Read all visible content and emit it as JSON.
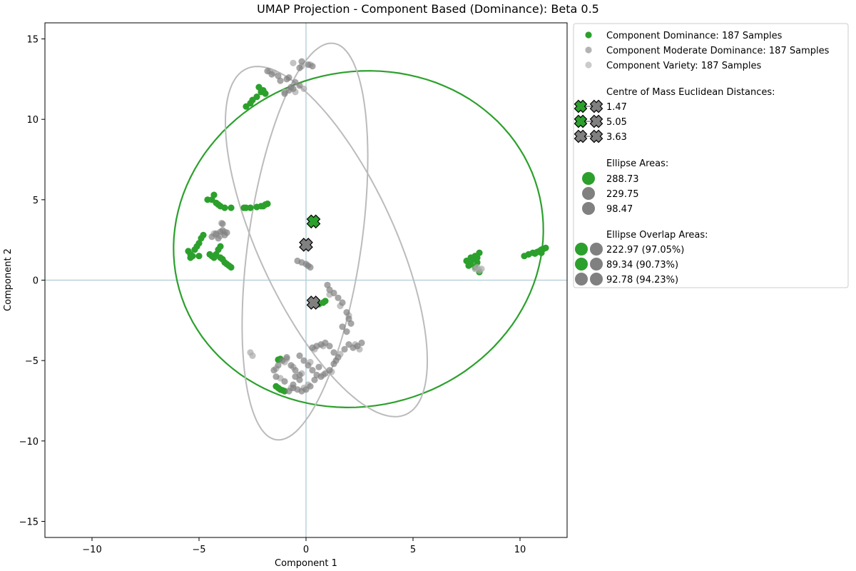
{
  "chart_data": {
    "type": "scatter",
    "title": "UMAP Projection - Component Based (Dominance): Beta 0.5",
    "xlabel": "Component 1",
    "ylabel": "Component 2",
    "xlim": [
      -12.2,
      12.2
    ],
    "ylim": [
      -16.0,
      16.0
    ],
    "xticks": [
      -10,
      -5,
      0,
      5,
      10
    ],
    "yticks": [
      -15,
      -10,
      -5,
      0,
      5,
      10,
      15
    ],
    "reference_lines": {
      "x": 0,
      "y": 0,
      "color": "#aecbd6"
    },
    "grid": false,
    "colors": {
      "dominance": "#2ca02c",
      "moderate": "#808080",
      "variety": "#a9a9a9"
    },
    "series": [
      {
        "name": "Component Dominance: 187 Samples",
        "color": "#2ca02c",
        "points": [
          [
            -2.2,
            12.0
          ],
          [
            -2.0,
            11.8
          ],
          [
            -1.9,
            11.6
          ],
          [
            -2.3,
            11.4
          ],
          [
            -2.5,
            11.2
          ],
          [
            -2.6,
            11.0
          ],
          [
            -2.8,
            10.8
          ],
          [
            -2.1,
            11.7
          ],
          [
            -4.3,
            5.3
          ],
          [
            -4.4,
            5.0
          ],
          [
            -4.2,
            4.8
          ],
          [
            -4.0,
            4.6
          ],
          [
            -3.8,
            4.5
          ],
          [
            -3.5,
            4.5
          ],
          [
            -4.6,
            5.0
          ],
          [
            -4.1,
            4.7
          ],
          [
            -2.9,
            4.5
          ],
          [
            -2.6,
            4.5
          ],
          [
            -2.3,
            4.55
          ],
          [
            -2.0,
            4.6
          ],
          [
            -1.9,
            4.7
          ],
          [
            -1.8,
            4.75
          ],
          [
            -2.8,
            4.5
          ],
          [
            -2.1,
            4.6
          ],
          [
            -5.5,
            1.8
          ],
          [
            -5.4,
            1.6
          ],
          [
            -5.3,
            1.5
          ],
          [
            -5.2,
            1.9
          ],
          [
            -5.1,
            2.1
          ],
          [
            -5.0,
            2.3
          ],
          [
            -4.9,
            2.6
          ],
          [
            -4.8,
            2.8
          ],
          [
            -5.4,
            1.4
          ],
          [
            -5.0,
            1.5
          ],
          [
            -4.5,
            1.6
          ],
          [
            -4.3,
            1.4
          ],
          [
            -4.2,
            1.6
          ],
          [
            -4.1,
            1.9
          ],
          [
            -4.0,
            2.1
          ],
          [
            -3.9,
            1.3
          ],
          [
            -3.8,
            1.1
          ],
          [
            -3.7,
            1.0
          ],
          [
            -3.6,
            0.9
          ],
          [
            -3.5,
            0.8
          ],
          [
            -4.0,
            1.4
          ],
          [
            -4.4,
            1.5
          ],
          [
            7.5,
            1.2
          ],
          [
            7.7,
            1.0
          ],
          [
            7.8,
            1.3
          ],
          [
            7.9,
            1.5
          ],
          [
            8.0,
            1.4
          ],
          [
            8.1,
            1.7
          ],
          [
            7.6,
            0.9
          ],
          [
            8.0,
            1.1
          ],
          [
            7.9,
            0.8
          ],
          [
            8.1,
            0.5
          ],
          [
            7.7,
            1.4
          ],
          [
            10.2,
            1.5
          ],
          [
            10.4,
            1.6
          ],
          [
            10.6,
            1.7
          ],
          [
            10.8,
            1.75
          ],
          [
            10.9,
            1.8
          ],
          [
            11.0,
            1.9
          ],
          [
            11.1,
            1.95
          ],
          [
            11.2,
            2.0
          ],
          [
            10.7,
            1.65
          ],
          [
            11.0,
            1.7
          ],
          [
            -1.2,
            -4.9
          ],
          [
            -1.3,
            -4.95
          ],
          [
            0.8,
            -1.4
          ],
          [
            0.9,
            -1.3
          ],
          [
            0.6,
            -1.5
          ],
          [
            -1.4,
            -6.6
          ],
          [
            -1.3,
            -6.7
          ],
          [
            -1.2,
            -6.8
          ],
          [
            -1.1,
            -6.85
          ],
          [
            -1.0,
            -6.9
          ]
        ]
      },
      {
        "name": "Component Moderate Dominance: 187 Samples",
        "color": "#808080",
        "points": [
          [
            -1.8,
            13.0
          ],
          [
            -1.6,
            12.8
          ],
          [
            -1.3,
            12.7
          ],
          [
            -0.8,
            12.6
          ],
          [
            -0.3,
            13.2
          ],
          [
            -0.2,
            13.6
          ],
          [
            0.1,
            13.4
          ],
          [
            0.3,
            13.3
          ],
          [
            -0.7,
            12.0
          ],
          [
            -0.5,
            12.3
          ],
          [
            -0.3,
            12.1
          ],
          [
            -0.8,
            11.8
          ],
          [
            -1.0,
            11.6
          ],
          [
            -0.6,
            11.9
          ],
          [
            -1.2,
            12.4
          ],
          [
            -0.9,
            12.5
          ],
          [
            -4.2,
            2.9
          ],
          [
            -4.0,
            3.0
          ],
          [
            -3.9,
            3.1
          ],
          [
            -3.8,
            2.8
          ],
          [
            -3.7,
            2.95
          ],
          [
            -4.4,
            2.7
          ],
          [
            -4.1,
            2.6
          ],
          [
            -3.9,
            3.5
          ],
          [
            -0.4,
            1.2
          ],
          [
            -0.2,
            1.1
          ],
          [
            0.0,
            1.0
          ],
          [
            0.1,
            0.9
          ],
          [
            0.2,
            0.8
          ],
          [
            1.0,
            -0.3
          ],
          [
            1.1,
            -0.6
          ],
          [
            1.3,
            -0.8
          ],
          [
            1.5,
            -1.1
          ],
          [
            1.7,
            -1.4
          ],
          [
            1.9,
            -2.0
          ],
          [
            2.0,
            -2.4
          ],
          [
            2.1,
            -2.7
          ],
          [
            1.9,
            -3.2
          ],
          [
            1.7,
            -2.9
          ],
          [
            0.3,
            -4.2
          ],
          [
            0.5,
            -4.1
          ],
          [
            0.7,
            -4.0
          ],
          [
            0.9,
            -3.9
          ],
          [
            1.1,
            -4.1
          ],
          [
            1.3,
            -4.5
          ],
          [
            1.5,
            -4.8
          ],
          [
            1.8,
            -4.3
          ],
          [
            2.0,
            -4.0
          ],
          [
            2.2,
            -4.2
          ],
          [
            2.4,
            -4.1
          ],
          [
            2.6,
            -3.9
          ],
          [
            -0.3,
            -4.7
          ],
          [
            -0.1,
            -5.0
          ],
          [
            0.1,
            -5.3
          ],
          [
            0.3,
            -5.6
          ],
          [
            0.5,
            -5.9
          ],
          [
            0.7,
            -6.0
          ],
          [
            0.9,
            -5.8
          ],
          [
            1.1,
            -5.6
          ],
          [
            1.3,
            -5.2
          ],
          [
            1.4,
            -5.0
          ],
          [
            0.4,
            -6.2
          ],
          [
            0.6,
            -5.4
          ],
          [
            -1.5,
            -5.6
          ],
          [
            -1.3,
            -5.3
          ],
          [
            -1.1,
            -5.0
          ],
          [
            -0.9,
            -4.8
          ],
          [
            -0.7,
            -5.3
          ],
          [
            -0.5,
            -5.6
          ],
          [
            -0.3,
            -5.9
          ],
          [
            -1.4,
            -6.0
          ],
          [
            -1.0,
            -6.3
          ],
          [
            -0.6,
            -6.5
          ],
          [
            -0.8,
            -6.9
          ],
          [
            -0.6,
            -6.7
          ],
          [
            -0.4,
            -6.8
          ],
          [
            -0.2,
            -6.9
          ],
          [
            0.0,
            -6.8
          ],
          [
            0.2,
            -6.6
          ],
          [
            -0.3,
            -6.2
          ],
          [
            -0.5,
            -6.0
          ]
        ]
      },
      {
        "name": "Component Variety: 187 Samples",
        "color": "#a9a9a9",
        "points": [
          [
            -1.7,
            13.0
          ],
          [
            -1.5,
            12.9
          ],
          [
            -0.6,
            13.5
          ],
          [
            -0.2,
            13.3
          ],
          [
            0.2,
            13.4
          ],
          [
            -1.0,
            11.7
          ],
          [
            -0.5,
            11.7
          ],
          [
            -0.1,
            11.9
          ],
          [
            -4.3,
            2.9
          ],
          [
            -4.0,
            2.75
          ],
          [
            -3.8,
            3.0
          ],
          [
            -3.95,
            3.55
          ],
          [
            -4.2,
            2.8
          ],
          [
            8.0,
            0.8
          ],
          [
            8.1,
            0.6
          ],
          [
            8.2,
            0.7
          ],
          [
            7.9,
            0.7
          ],
          [
            1.1,
            -0.9
          ],
          [
            1.6,
            -1.6
          ],
          [
            2.0,
            -2.2
          ],
          [
            0.4,
            -4.3
          ],
          [
            0.8,
            -4.1
          ],
          [
            1.6,
            -4.6
          ],
          [
            2.3,
            -4.0
          ],
          [
            2.5,
            -4.3
          ],
          [
            0.2,
            -5.1
          ],
          [
            0.8,
            -5.9
          ],
          [
            1.2,
            -5.7
          ],
          [
            -1.4,
            -5.5
          ],
          [
            -1.0,
            -5.1
          ],
          [
            -0.6,
            -5.4
          ],
          [
            -0.2,
            -5.8
          ],
          [
            -0.7,
            -6.7
          ],
          [
            -0.1,
            -6.7
          ],
          [
            0.1,
            -6.5
          ],
          [
            -0.9,
            -4.9
          ],
          [
            -1.2,
            -6.1
          ],
          [
            -2.6,
            -4.5
          ],
          [
            -2.5,
            -4.7
          ]
        ]
      }
    ],
    "centres": [
      {
        "series": "Component Dominance: 187 Samples",
        "x": 0.35,
        "y": 3.65,
        "color": "#2ca02c"
      },
      {
        "series": "Component Moderate Dominance: 187 Samples",
        "x": 0.0,
        "y": 2.2,
        "color": "#808080"
      },
      {
        "series": "Component Variety: 187 Samples",
        "x": 0.35,
        "y": -1.4,
        "color": "#808080"
      }
    ],
    "ellipses": [
      {
        "series": "Component Dominance: 187 Samples",
        "cx": 2.45,
        "cy": 2.55,
        "rx": 8.6,
        "ry": 10.5,
        "angle_deg": -8,
        "color": "#2ca02c"
      },
      {
        "series": "Component Moderate Dominance: 187 Samples",
        "cx": 0.95,
        "cy": 2.4,
        "rx": 3.3,
        "ry": 11.4,
        "angle_deg": 18,
        "color": "#bbbbbb"
      },
      {
        "series": "Component Variety: 187 Samples",
        "cx": -0.05,
        "cy": 2.4,
        "rx": 2.65,
        "ry": 12.4,
        "angle_deg": -6,
        "color": "#bbbbbb"
      }
    ],
    "legend": {
      "placement": "outside-upper-right",
      "series_labels": [
        "Component Dominance: 187 Samples",
        "Component Moderate Dominance: 187 Samples",
        "Component Variety: 187 Samples"
      ],
      "distances_title": "Centre of Mass Euclidean Distances:",
      "distances": [
        {
          "label": "1.47",
          "colors": [
            "#2ca02c",
            "#808080"
          ]
        },
        {
          "label": "5.05",
          "colors": [
            "#2ca02c",
            "#808080"
          ]
        },
        {
          "label": "3.63",
          "colors": [
            "#808080",
            "#808080"
          ]
        }
      ],
      "areas_title": "Ellipse Areas:",
      "areas": [
        {
          "label": "288.73",
          "color": "#2ca02c"
        },
        {
          "label": "229.75",
          "color": "#808080"
        },
        {
          "label": "98.47",
          "color": "#808080"
        }
      ],
      "overlaps_title": "Ellipse Overlap Areas:",
      "overlaps": [
        {
          "label": "222.97 (97.05%)",
          "colors": [
            "#2ca02c",
            "#808080"
          ]
        },
        {
          "label": "89.34 (90.73%)",
          "colors": [
            "#2ca02c",
            "#808080"
          ]
        },
        {
          "label": "92.78 (94.23%)",
          "colors": [
            "#808080",
            "#808080"
          ]
        }
      ]
    }
  }
}
